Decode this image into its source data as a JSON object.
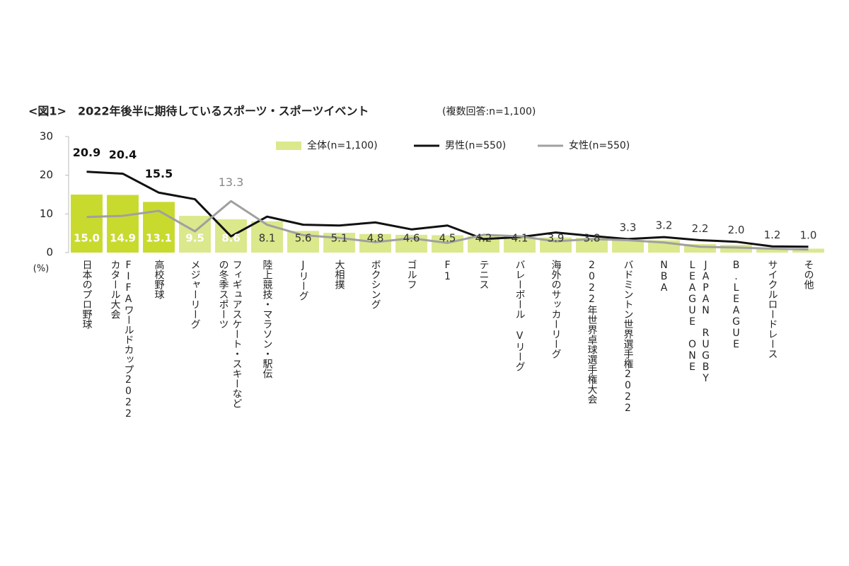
{
  "chart_data": {
    "type": "bar-line",
    "title": "<図1>　2022年後半に期待しているスポーツ・スポーツイベント",
    "subtitle": "(複数回答:n=1,100)",
    "y_unit": "(%)",
    "categories": [
      "日本のプロ野球",
      [
        "FIFAワールドカップ2022",
        "カタール大会"
      ],
      "高校野球",
      "メジャーリーグ",
      [
        "フィギュアスケート・スキーなど",
        "の冬季スポーツ"
      ],
      "陸上競技・マラソン・駅伝",
      "Jリーグ",
      "大相撲",
      "ボクシング",
      "ゴルフ",
      "F1",
      "テニス",
      "バレーボール Vリーグ",
      "海外のサッカーリーグ",
      "2022年世界卓球選手権大会",
      "バドミントン世界選手権2022",
      "NBA",
      [
        "JAPAN RUGBY",
        "LEAGUE ONE"
      ],
      "B.LEAGUE",
      "サイクルロードレース",
      "その他"
    ],
    "ylim": [
      0,
      30
    ],
    "yticks": [
      0,
      10,
      20,
      30
    ],
    "series": [
      {
        "name": "全体(n=1,100)",
        "kind": "bar",
        "color": "#dbe88c",
        "highlight_color": "#c8da2e",
        "highlight_count": 3,
        "values": [
          15.0,
          14.9,
          13.1,
          9.5,
          8.6,
          8.1,
          5.6,
          5.1,
          4.8,
          4.6,
          4.5,
          4.2,
          4.1,
          3.9,
          3.8,
          3.3,
          3.2,
          2.2,
          2.0,
          1.2,
          1.0
        ],
        "value_labels": [
          "15.0",
          "14.9",
          "13.1",
          "9.5",
          "8.6",
          "8.1",
          "5.6",
          "5.1",
          "4.8",
          "4.6",
          "4.5",
          "4.2",
          "4.1",
          "3.9",
          "3.8",
          "3.3",
          "3.2",
          "2.2",
          "2.0",
          "1.2",
          "1.0"
        ]
      },
      {
        "name": "男性(n=550)",
        "kind": "line",
        "color": "#111111",
        "values": [
          20.9,
          20.4,
          15.5,
          13.8,
          4.2,
          9.3,
          7.2,
          7.0,
          7.8,
          6.0,
          7.0,
          3.5,
          4.0,
          5.2,
          4.3,
          3.5,
          4.0,
          3.2,
          2.8,
          1.6,
          1.5
        ],
        "value_labels": [
          "20.9",
          "20.4",
          "15.5",
          null,
          null,
          null,
          null,
          null,
          null,
          null,
          null,
          null,
          null,
          null,
          null,
          null,
          null,
          null,
          null,
          null,
          null
        ]
      },
      {
        "name": "女性(n=550)",
        "kind": "line",
        "color": "#a0a0a0",
        "values": [
          9.2,
          9.5,
          10.8,
          5.5,
          13.3,
          7.2,
          4.5,
          3.8,
          2.7,
          3.7,
          2.5,
          4.6,
          4.2,
          2.9,
          3.5,
          3.2,
          2.6,
          1.5,
          1.3,
          1.0,
          0.8
        ],
        "value_labels": [
          null,
          null,
          null,
          null,
          "13.3",
          null,
          null,
          null,
          null,
          null,
          null,
          null,
          null,
          null,
          null,
          null,
          null,
          null,
          null,
          null,
          null
        ]
      }
    ]
  }
}
